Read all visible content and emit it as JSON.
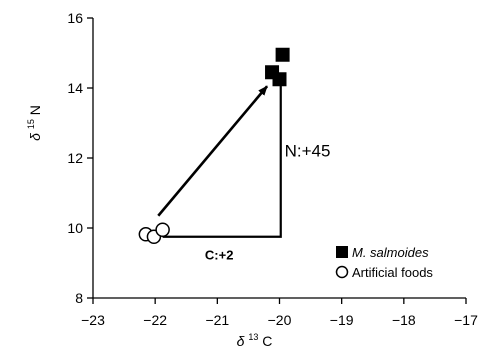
{
  "chart_data": {
    "type": "scatter",
    "xlim": [
      -23,
      -17
    ],
    "ylim": [
      8,
      16
    ],
    "xticks": [
      -23,
      -22,
      -21,
      -20,
      -19,
      -18,
      -17
    ],
    "yticks": [
      8,
      10,
      12,
      14,
      16
    ],
    "xlabel": {
      "symbol": "δ",
      "sup": "13",
      "element": "C"
    },
    "ylabel": {
      "symbol": "δ",
      "sup": "15",
      "element": "N"
    },
    "grid": false,
    "legend_position": "bottom-right",
    "series": [
      {
        "name": "M. salmoides",
        "marker": "filled-square",
        "color": "#000000",
        "points": [
          {
            "x": -19.95,
            "y": 14.95
          },
          {
            "x": -20.12,
            "y": 14.45
          },
          {
            "x": -20.0,
            "y": 14.25
          }
        ]
      },
      {
        "name": "Artificial foods",
        "marker": "open-circle",
        "color": "#000000",
        "points": [
          {
            "x": -22.15,
            "y": 9.82
          },
          {
            "x": -22.02,
            "y": 9.75
          },
          {
            "x": -21.88,
            "y": 9.95
          }
        ]
      }
    ],
    "annotations": {
      "n_label": "N:+45",
      "c_label": "C:+2",
      "arrow": {
        "from": {
          "x": -21.95,
          "y": 10.35
        },
        "to": {
          "x": -20.2,
          "y": 14.05
        }
      },
      "bracket": {
        "x_left": -21.88,
        "x_right": -19.98,
        "y_bottom": 9.75,
        "y_top": 14.1
      }
    }
  }
}
